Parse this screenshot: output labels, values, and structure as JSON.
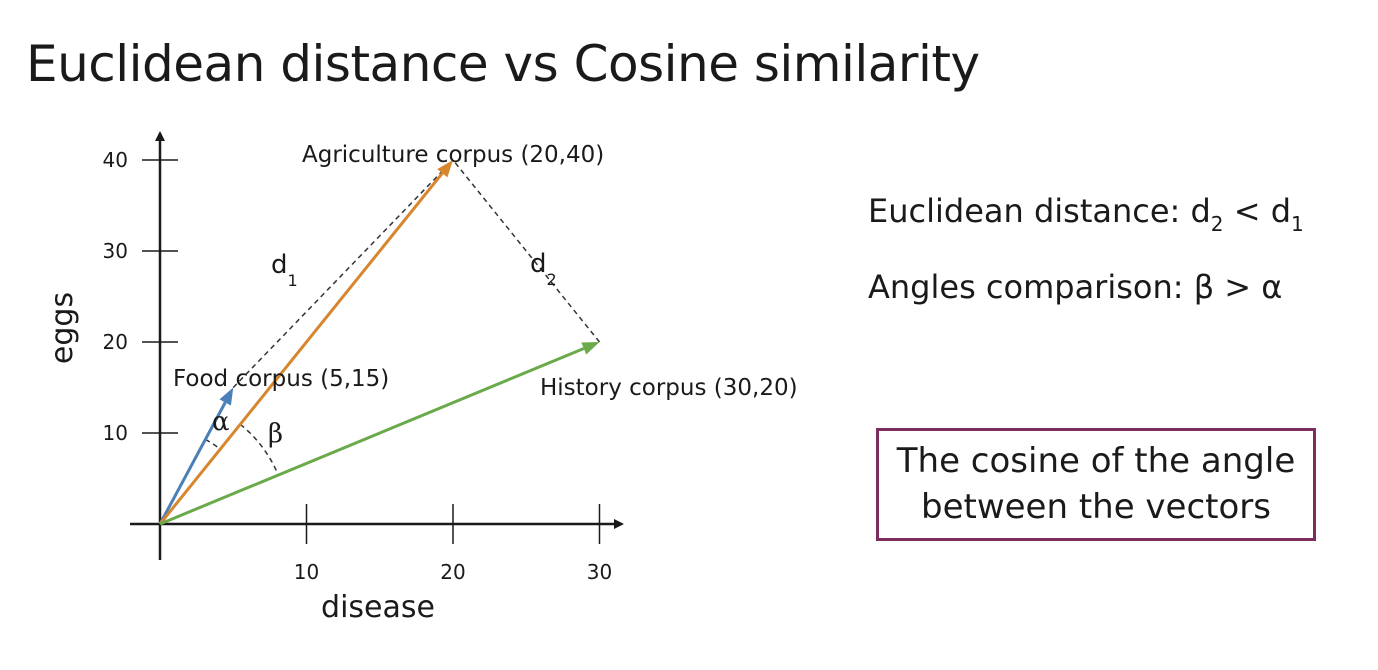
{
  "title": "Euclidean distance vs Cosine similarity",
  "chart_data": {
    "type": "vector",
    "xlabel": "disease",
    "ylabel": "eggs",
    "xticks": [
      "10",
      "20",
      "30"
    ],
    "yticks": [
      "10",
      "20",
      "30",
      "40"
    ],
    "xlim": [
      0,
      30
    ],
    "ylim": [
      0,
      40
    ],
    "vectors": [
      {
        "name": "Food corpus (5,15)",
        "x": 5,
        "y": 15,
        "color": "#4a7fb8"
      },
      {
        "name": "Agriculture corpus (20,40)",
        "x": 20,
        "y": 40,
        "color": "#d8862e"
      },
      {
        "name": "History corpus (30,20)",
        "x": 30,
        "y": 20,
        "color": "#6aaa4a"
      }
    ],
    "distances": [
      {
        "label": "d",
        "sub": "1",
        "from": [
          5,
          15
        ],
        "to": [
          20,
          40
        ]
      },
      {
        "label": "d",
        "sub": "2",
        "from": [
          30,
          20
        ],
        "to": [
          20,
          40
        ]
      }
    ],
    "angles": [
      {
        "label": "α"
      },
      {
        "label": "β"
      }
    ]
  },
  "comparisons": {
    "euclid_text": "Euclidean distance: d",
    "euclid_sub2": "2",
    "euclid_lt": " < d",
    "euclid_sub1": "1",
    "angles": "Angles comparison: β > α"
  },
  "box_lines": [
    "The cosine of the angle",
    "between the vectors"
  ]
}
